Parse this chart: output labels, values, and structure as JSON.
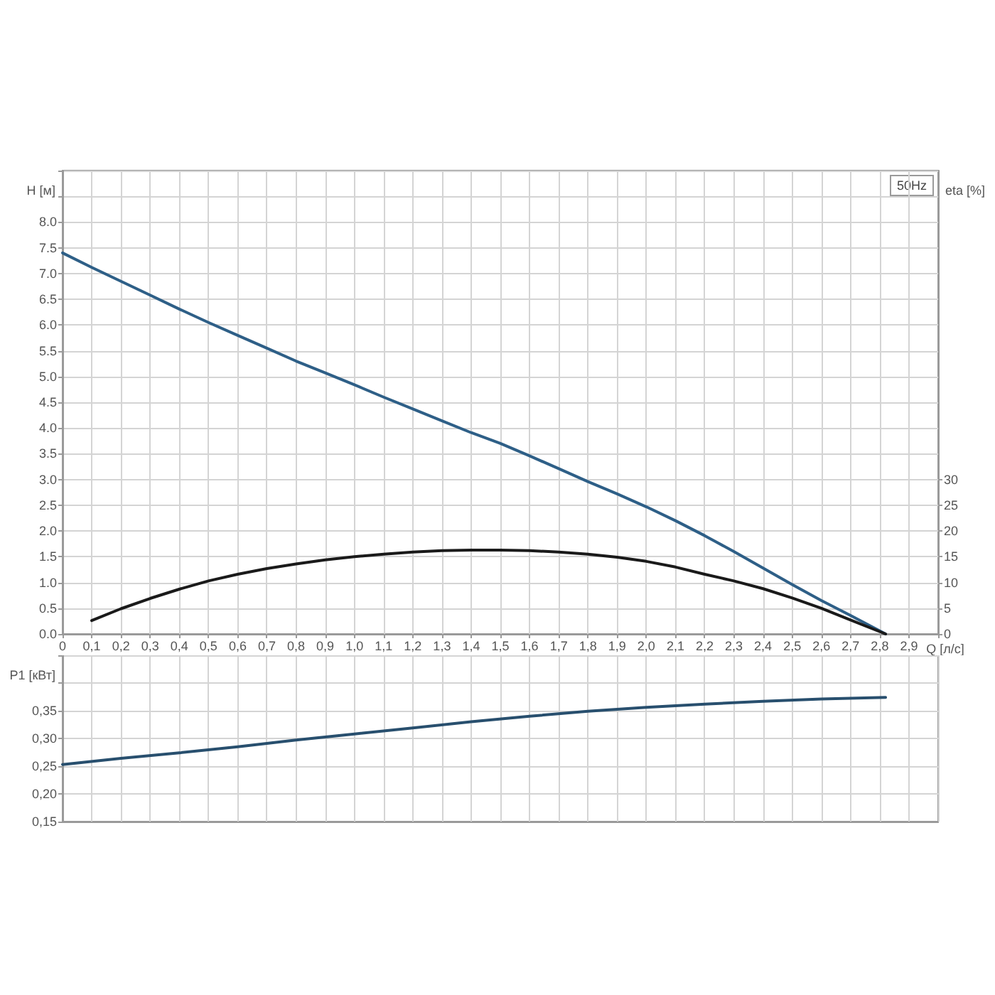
{
  "chart_data": [
    {
      "type": "line",
      "xlabel": "Q [л/с]",
      "ylabel": "H [м]",
      "y2label": "eta [%]",
      "annotations": [
        "50Hz"
      ],
      "xlim": [
        0,
        3
      ],
      "xticks": [
        0,
        {
          "value": 0.1,
          "label": "0,1"
        },
        {
          "value": 0.2,
          "label": "0,2"
        },
        {
          "value": 0.3,
          "label": "0,3"
        },
        {
          "value": 0.4,
          "label": "0,4"
        },
        {
          "value": 0.5,
          "label": "0,5"
        },
        {
          "value": 0.6,
          "label": "0,6"
        },
        {
          "value": 0.7,
          "label": "0,7"
        },
        {
          "value": 0.8,
          "label": "0,8"
        },
        {
          "value": 0.9,
          "label": "0,9"
        },
        {
          "value": 1,
          "label": "1,0"
        },
        {
          "value": 1.1,
          "label": "1,1"
        },
        {
          "value": 1.2,
          "label": "1,2"
        },
        {
          "value": 1.3,
          "label": "1,3"
        },
        {
          "value": 1.4,
          "label": "1,4"
        },
        {
          "value": 1.5,
          "label": "1,5"
        },
        {
          "value": 1.6,
          "label": "1,6"
        },
        {
          "value": 1.7,
          "label": "1,7"
        },
        {
          "value": 1.8,
          "label": "1,8"
        },
        {
          "value": 1.9,
          "label": "1,9"
        },
        {
          "value": 2,
          "label": "2,0"
        },
        {
          "value": 2.1,
          "label": "2,1"
        },
        {
          "value": 2.2,
          "label": "2,2"
        },
        {
          "value": 2.3,
          "label": "2,3"
        },
        {
          "value": 2.4,
          "label": "2,4"
        },
        {
          "value": 2.5,
          "label": "2,5"
        },
        {
          "value": 2.6,
          "label": "2,6"
        },
        {
          "value": 2.7,
          "label": "2,7"
        },
        {
          "value": 2.8,
          "label": "2,8"
        },
        {
          "value": 2.9,
          "label": "2,9"
        },
        {
          "value": 3,
          "label": null
        }
      ],
      "ylim": [
        0,
        9
      ],
      "yticks": [
        {
          "value": 0,
          "label": "0.0"
        },
        0.5,
        {
          "value": 1,
          "label": "1.0"
        },
        1.5,
        {
          "value": 2,
          "label": "2.0"
        },
        2.5,
        {
          "value": 3,
          "label": "3.0"
        },
        3.5,
        {
          "value": 4,
          "label": "4.0"
        },
        4.5,
        {
          "value": 5,
          "label": "5.0"
        },
        5.5,
        {
          "value": 6,
          "label": "6.0"
        },
        6.5,
        {
          "value": 7,
          "label": "7.0"
        },
        7.5,
        {
          "value": 8,
          "label": "8.0"
        },
        {
          "value": 8.5,
          "label": null
        },
        {
          "value": 9,
          "label": null
        }
      ],
      "y2lim": [
        0,
        90
      ],
      "y2ticks": [
        0,
        5,
        10,
        15,
        20,
        25,
        30
      ],
      "grid": true,
      "marker": "none",
      "series": [
        {
          "color": "#2e5f87",
          "x": [
            0,
            0.1,
            0.2,
            0.3,
            0.4,
            0.5,
            0.6,
            0.7,
            0.8,
            0.9,
            1,
            1.1,
            1.2,
            1.3,
            1.4,
            1.5,
            1.6,
            1.7,
            1.8,
            1.9,
            2,
            2.1,
            2.2,
            2.3,
            2.4,
            2.5,
            2.6,
            2.7,
            2.82
          ],
          "values": [
            7.4,
            7.12,
            6.85,
            6.58,
            6.31,
            6.05,
            5.8,
            5.55,
            5.3,
            5.07,
            4.84,
            4.6,
            4.37,
            4.14,
            3.91,
            3.7,
            3.46,
            3.21,
            2.96,
            2.72,
            2.47,
            2.2,
            1.91,
            1.6,
            1.28,
            0.96,
            0.65,
            0.36,
            0
          ]
        },
        {
          "color": "#1a1a1a",
          "axis": "y2",
          "x": [
            0.1,
            0.2,
            0.3,
            0.4,
            0.5,
            0.6,
            0.7,
            0.8,
            0.9,
            1,
            1.1,
            1.2,
            1.3,
            1.4,
            1.5,
            1.6,
            1.7,
            1.8,
            1.9,
            2,
            2.1,
            2.2,
            2.3,
            2.4,
            2.5,
            2.6,
            2.7,
            2.82
          ],
          "values": [
            2.6,
            4.9,
            6.9,
            8.7,
            10.3,
            11.6,
            12.7,
            13.6,
            14.4,
            15,
            15.5,
            15.9,
            16.2,
            16.3,
            16.3,
            16.2,
            15.9,
            15.5,
            14.9,
            14.1,
            13,
            11.6,
            10.3,
            8.8,
            7,
            5,
            2.7,
            0
          ]
        }
      ]
    },
    {
      "type": "line",
      "ylabel": "P1 [кВт]",
      "xlim": [
        0,
        3
      ],
      "xticks": [
        0,
        0.1,
        0.2,
        0.3,
        0.4,
        0.5,
        0.6,
        0.7,
        0.8,
        0.9,
        1,
        1.1,
        1.2,
        1.3,
        1.4,
        1.5,
        1.6,
        1.7,
        1.8,
        1.9,
        2,
        2.1,
        2.2,
        2.3,
        2.4,
        2.5,
        2.6,
        2.7,
        2.8,
        2.9,
        3
      ],
      "ylim": [
        0.15,
        0.45
      ],
      "yticks": [
        {
          "value": 0.15,
          "label": "0,15"
        },
        {
          "value": 0.2,
          "label": "0,20"
        },
        {
          "value": 0.25,
          "label": "0,25"
        },
        {
          "value": 0.3,
          "label": "0,30"
        },
        {
          "value": 0.35,
          "label": "0,35"
        },
        {
          "value": 0.4,
          "label": null
        },
        {
          "value": 0.45,
          "label": null
        }
      ],
      "tick_labels": "y",
      "grid": true,
      "marker": "none",
      "series": [
        {
          "color": "#284f6e",
          "x": [
            0,
            0.2,
            0.4,
            0.6,
            0.8,
            1,
            1.2,
            1.4,
            1.6,
            1.8,
            2,
            2.2,
            2.4,
            2.6,
            2.82
          ],
          "values": [
            0.253,
            0.264,
            0.274,
            0.285,
            0.297,
            0.308,
            0.319,
            0.33,
            0.34,
            0.349,
            0.356,
            0.362,
            0.367,
            0.371,
            0.374
          ]
        }
      ]
    }
  ]
}
